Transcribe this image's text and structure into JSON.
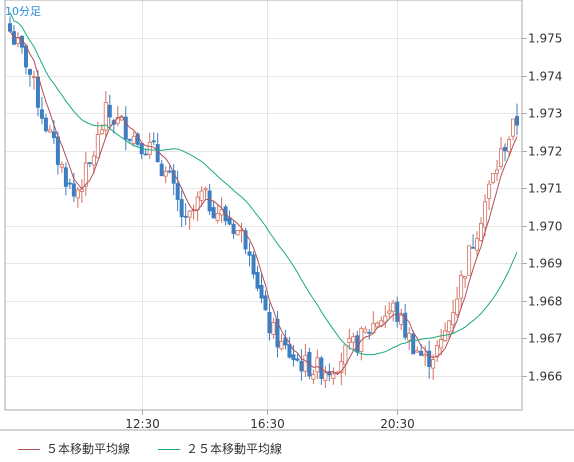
{
  "timeframe_label": "10分足",
  "legend": [
    {
      "label": "５本移動平均線",
      "color": "#b05058"
    },
    {
      "label": "２５本移動平均線",
      "color": "#1aaa7c"
    }
  ],
  "colors": {
    "up_candle": "#d47060",
    "down_candle": "#3d7fc1",
    "ma5": "#b05058",
    "ma25": "#1aaa7c",
    "grid": "#e6e6e6",
    "axis": "#aaaaaa"
  },
  "chart_data": {
    "type": "candlestick",
    "timeframe": "10分足",
    "x_ticks": [
      "12:30",
      "16:30",
      "20:30"
    ],
    "y_ticks": [
      1.966,
      1.967,
      1.968,
      1.969,
      1.97,
      1.971,
      1.972,
      1.973,
      1.974,
      1.975
    ],
    "ylim": [
      1.965,
      1.976
    ],
    "y_scale_side": "right",
    "grid": true,
    "legend_placement": "bottom",
    "series": [
      {
        "name": "５本移動平均線",
        "type": "line"
      },
      {
        "name": "２５本移動平均線",
        "type": "line"
      }
    ]
  }
}
